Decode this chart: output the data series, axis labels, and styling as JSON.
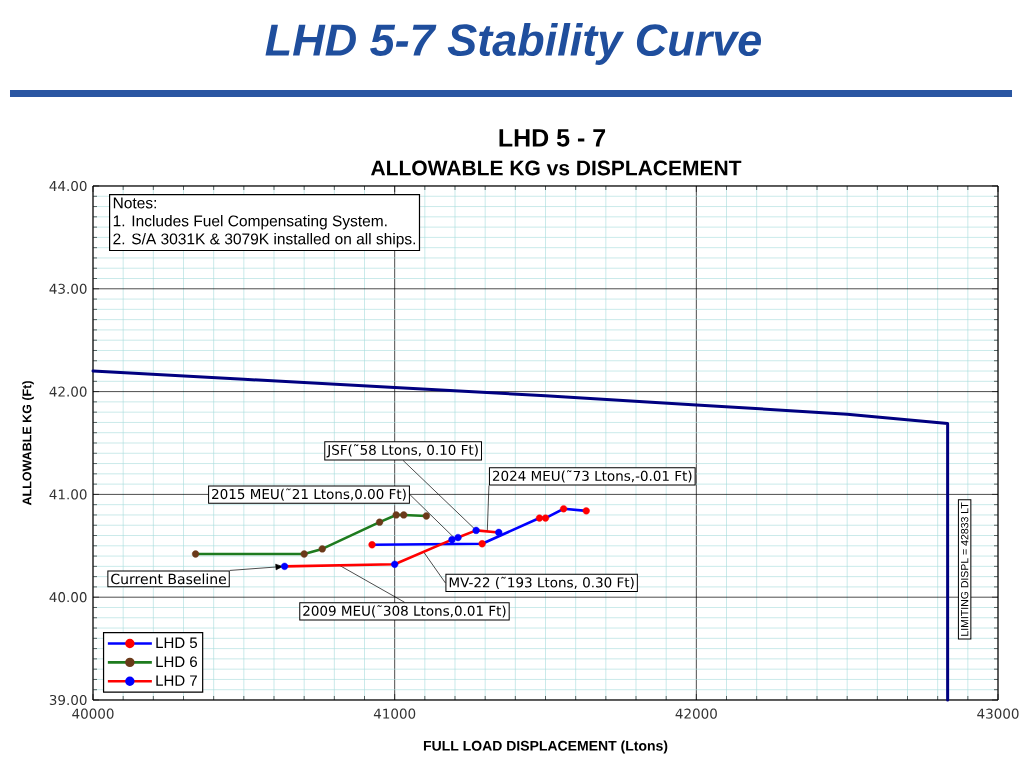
{
  "chart_data": {
    "type": "line",
    "title": "LHD 5-7 Stability Curve",
    "subtitle": "LHD 5 - 7",
    "xlabel": "FULL LOAD DISPLACEMENT (Ltons)",
    "ylabel": "ALLOWABLE KG (Ft)",
    "xlim": [
      40000,
      43000
    ],
    "ylim": [
      39,
      44
    ],
    "xticks": [
      40000,
      {
        "value": 40100,
        "label": null
      },
      {
        "value": 40200,
        "label": null
      },
      {
        "value": 40300,
        "label": null
      },
      {
        "value": 40400,
        "label": null
      },
      {
        "value": 40500,
        "label": null
      },
      {
        "value": 40600,
        "label": null
      },
      {
        "value": 40700,
        "label": null
      },
      {
        "value": 40800,
        "label": null
      },
      {
        "value": 40900,
        "label": null
      },
      41000,
      {
        "value": 41100,
        "label": null
      },
      {
        "value": 41200,
        "label": null
      },
      {
        "value": 41300,
        "label": null
      },
      {
        "value": 41400,
        "label": null
      },
      {
        "value": 41500,
        "label": null
      },
      {
        "value": 41600,
        "label": null
      },
      {
        "value": 41700,
        "label": null
      },
      {
        "value": 41800,
        "label": null
      },
      {
        "value": 41900,
        "label": null
      },
      42000,
      {
        "value": 42100,
        "label": null
      },
      {
        "value": 42200,
        "label": null
      },
      {
        "value": 42300,
        "label": null
      },
      {
        "value": 42400,
        "label": null
      },
      {
        "value": 42500,
        "label": null
      },
      {
        "value": 42600,
        "label": null
      },
      {
        "value": 42700,
        "label": null
      },
      {
        "value": 42800,
        "label": null
      },
      {
        "value": 42900,
        "label": null
      },
      43000
    ],
    "yticks": [
      {
        "value": 39,
        "label": "39.00"
      },
      {
        "value": 39.1,
        "label": null
      },
      {
        "value": 39.2,
        "label": null
      },
      {
        "value": 39.3,
        "label": null
      },
      {
        "value": 39.4,
        "label": null
      },
      {
        "value": 39.5,
        "label": null
      },
      {
        "value": 39.6,
        "label": null
      },
      {
        "value": 39.7,
        "label": null
      },
      {
        "value": 39.8,
        "label": null
      },
      {
        "value": 39.9,
        "label": null
      },
      {
        "value": 40,
        "label": "40.00"
      },
      {
        "value": 40.1,
        "label": null
      },
      {
        "value": 40.2,
        "label": null
      },
      {
        "value": 40.3,
        "label": null
      },
      {
        "value": 40.4,
        "label": null
      },
      {
        "value": 40.5,
        "label": null
      },
      {
        "value": 40.6,
        "label": null
      },
      {
        "value": 40.7,
        "label": null
      },
      {
        "value": 40.8,
        "label": null
      },
      {
        "value": 40.9,
        "label": null
      },
      {
        "value": 41,
        "label": "41.00"
      },
      {
        "value": 41.1,
        "label": null
      },
      {
        "value": 41.2,
        "label": null
      },
      {
        "value": 41.3,
        "label": null
      },
      {
        "value": 41.4,
        "label": null
      },
      {
        "value": 41.5,
        "label": null
      },
      {
        "value": 41.6,
        "label": null
      },
      {
        "value": 41.7,
        "label": null
      },
      {
        "value": 41.8,
        "label": null
      },
      {
        "value": 41.9,
        "label": null
      },
      {
        "value": 42,
        "label": "42.00"
      },
      {
        "value": 42.1,
        "label": null
      },
      {
        "value": 42.2,
        "label": null
      },
      {
        "value": 42.3,
        "label": null
      },
      {
        "value": 42.4,
        "label": null
      },
      {
        "value": 42.5,
        "label": null
      },
      {
        "value": 42.6,
        "label": null
      },
      {
        "value": 42.7,
        "label": null
      },
      {
        "value": 42.8,
        "label": null
      },
      {
        "value": 42.9,
        "label": null
      },
      {
        "value": 43,
        "label": "43.00"
      },
      {
        "value": 43.1,
        "label": null
      },
      {
        "value": 43.2,
        "label": null
      },
      {
        "value": 43.3,
        "label": null
      },
      {
        "value": 43.4,
        "label": null
      },
      {
        "value": 43.5,
        "label": null
      },
      {
        "value": 43.6,
        "label": null
      },
      {
        "value": 43.7,
        "label": null
      },
      {
        "value": 43.8,
        "label": null
      },
      {
        "value": 43.9,
        "label": null
      },
      {
        "value": 44,
        "label": "44.00"
      }
    ],
    "grid": true,
    "legend": "bottom left",
    "marker": "circle",
    "series": [
      {
        "color": "#000080",
        "marker": "none",
        "x": [
          40000,
          40500,
          41000,
          41500,
          42000,
          42500,
          42833,
          42833
        ],
        "values": [
          42.2,
          42.12,
          42.04,
          41.96,
          41.87,
          41.78,
          41.69,
          39.0
        ]
      },
      {
        "name": "LHD 5",
        "color": "#0000ff",
        "colors": [
          "#ff0000",
          "#ff0000",
          "#ff0000",
          "#ff0000",
          "#ff0000",
          "#ff0000"
        ],
        "x": [
          40925,
          41290,
          41480,
          41500,
          41560,
          41635
        ],
        "values": [
          40.51,
          40.52,
          40.77,
          40.77,
          40.86,
          40.84
        ]
      },
      {
        "name": "LHD 6",
        "color": "#1e7b1e",
        "colors": [
          "#6b3a1a",
          "#6b3a1a",
          "#6b3a1a",
          "#6b3a1a",
          "#6b3a1a",
          "#6b3a1a",
          "#6b3a1a"
        ],
        "x": [
          40340,
          40700,
          40760,
          40950,
          41005,
          41030,
          41105
        ],
        "values": [
          40.42,
          40.42,
          40.47,
          40.73,
          40.8,
          40.8,
          40.79
        ]
      },
      {
        "name": "LHD 7",
        "color": "#ff0000",
        "colors": [
          "#0000ff",
          "#0000ff",
          "#0000ff",
          "#0000ff",
          "#0000ff",
          "#0000ff"
        ],
        "x": [
          40635,
          41000,
          41190,
          41210,
          41270,
          41345
        ],
        "values": [
          40.3,
          40.32,
          40.56,
          40.58,
          40.65,
          40.63
        ]
      }
    ],
    "annotations": [
      "ALLOWABLE KG vs DISPLACEMENT",
      "Notes:",
      "1. Includes Fuel Compensating System.",
      "2. S/A 3031K & 3079K installed on all ships.",
      {
        "text": "Current Baseline",
        "x": 40635,
        "y": 40.3
      },
      {
        "text": "2015 MEU(˜21 Ltons,0.00 Ft)",
        "x": 41200,
        "y": 40.57
      },
      {
        "text": "JSF(˜58 Ltons, 0.10 Ft)",
        "x": 41270,
        "y": 40.65
      },
      {
        "text": "2024 MEU(˜73 Ltons,-0.01 Ft)",
        "x": 41307,
        "y": 40.64
      },
      {
        "text": "MV-22 (˜193 Ltons, 0.30 Ft)",
        "x": 41096,
        "y": 40.44
      },
      {
        "text": "2009 MEU(˜308 Ltons,0.01 Ft)",
        "x": 40817,
        "y": 40.31
      },
      {
        "text": "LIMITING DISPL = 42833 LT",
        "x": 42833,
        "y": 40.27
      }
    ]
  }
}
